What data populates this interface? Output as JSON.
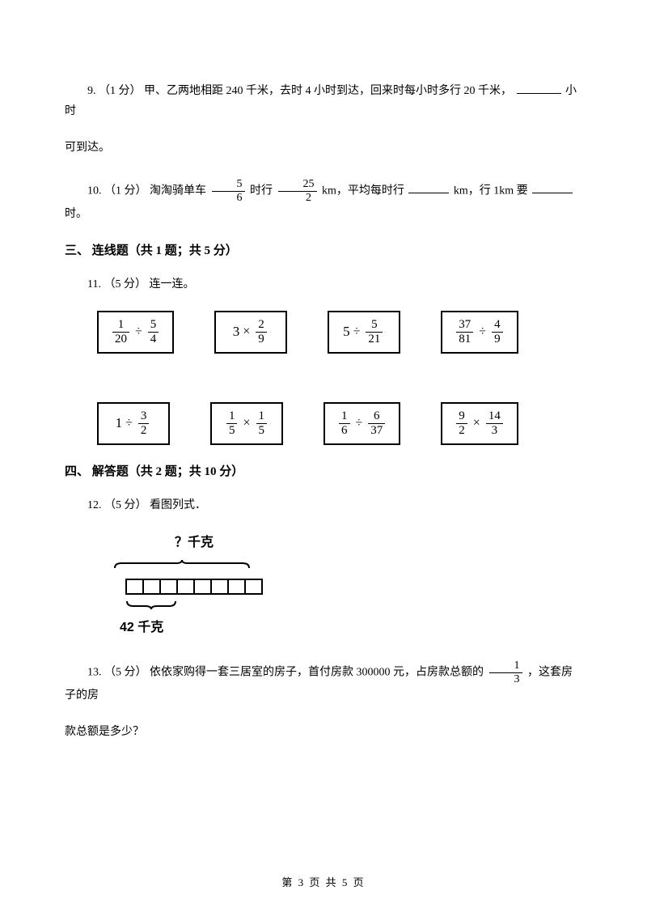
{
  "q9": {
    "num": "9.",
    "points": "（1 分）",
    "text_a": "甲、乙两地相距 240 千米，去时 4 小时到达，回来时每小时多行 20 千米，",
    "text_b": "小时",
    "text_c": "可到达。"
  },
  "q10": {
    "num": "10.",
    "points": "（1 分）",
    "text_a": "淘淘骑单车",
    "frac1": {
      "num": "5",
      "den": "6"
    },
    "text_b": " 时行 ",
    "frac2": {
      "num": "25",
      "den": "2"
    },
    "text_c": " km，平均每时行",
    "text_d": "km，行 1km 要",
    "text_e": "时。"
  },
  "section3": {
    "title": "三、 连线题（共 1 题；共 5 分）"
  },
  "q11": {
    "num": "11.",
    "points": "（5 分）",
    "text": "连一连。",
    "row1": [
      {
        "type": "frac_op_frac",
        "f1": {
          "n": "1",
          "d": "20"
        },
        "op": "÷",
        "f2": {
          "n": "5",
          "d": "4"
        }
      },
      {
        "type": "int_op_frac",
        "i": "3",
        "op": "×",
        "f": {
          "n": "2",
          "d": "9"
        }
      },
      {
        "type": "int_op_frac",
        "i": "5",
        "op": "÷",
        "f": {
          "n": "5",
          "d": "21"
        }
      },
      {
        "type": "frac_op_frac",
        "f1": {
          "n": "37",
          "d": "81"
        },
        "op": "÷",
        "f2": {
          "n": "4",
          "d": "9"
        }
      }
    ],
    "row2": [
      {
        "type": "int_op_frac",
        "i": "1",
        "op": "÷",
        "f": {
          "n": "3",
          "d": "2"
        }
      },
      {
        "type": "frac_op_frac",
        "f1": {
          "n": "1",
          "d": "5"
        },
        "op": "×",
        "f2": {
          "n": "1",
          "d": "5"
        }
      },
      {
        "type": "frac_op_frac",
        "f1": {
          "n": "1",
          "d": "6"
        },
        "op": "÷",
        "f2": {
          "n": "6",
          "d": "37"
        }
      },
      {
        "type": "frac_op_frac",
        "f1": {
          "n": "9",
          "d": "2"
        },
        "op": "×",
        "f2": {
          "n": "14",
          "d": "3"
        }
      }
    ]
  },
  "section4": {
    "title": "四、 解答题（共 2 题；共 10 分）"
  },
  "q12": {
    "num": "12.",
    "points": "（5 分）",
    "text": "看图列式．",
    "top_label": "？千克",
    "bottom_label": "42 千克",
    "total_segments": 8,
    "part_segments": 3
  },
  "q13": {
    "num": "13.",
    "points": "（5 分）",
    "text_a": "依依家购得一套三居室的房子，首付房款 300000 元，占房款总额的 ",
    "frac": {
      "num": "1",
      "den": "3"
    },
    "text_b": " ，这套房子的房",
    "text_c": "款总额是多少？"
  },
  "footer": {
    "text": "第 3 页 共 5 页"
  }
}
